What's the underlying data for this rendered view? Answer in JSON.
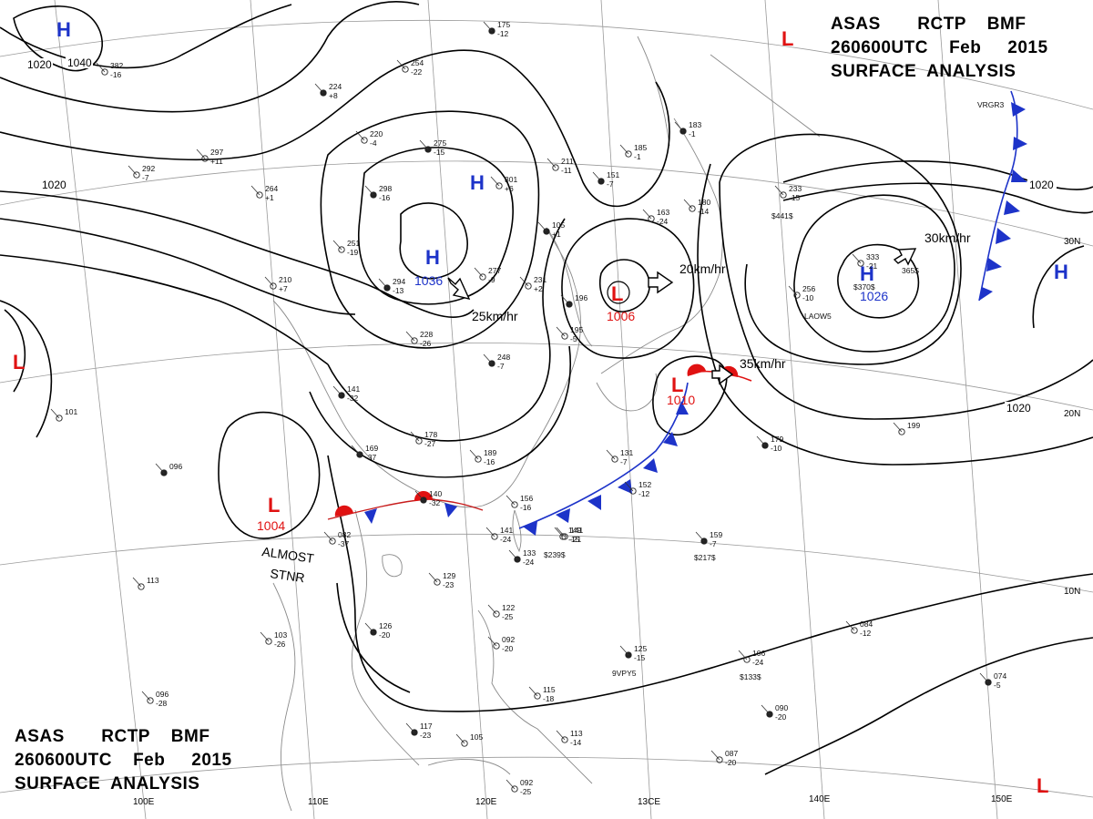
{
  "title": {
    "line1": [
      "ASAS",
      "RCTP",
      "BMF"
    ],
    "line2": [
      "260600UTC",
      "Feb",
      "2015"
    ],
    "line3": "SURFACE  ANALYSIS"
  },
  "graticule": {
    "longitude_labels": [
      "110E",
      "120E",
      "13CE",
      "140E",
      "150E"
    ],
    "latitude_labels": [
      "30N",
      "20N",
      "10N"
    ],
    "partial_label": "100E"
  },
  "isobar_labels": [
    "1040",
    "1020",
    "1020",
    "1020",
    "1020",
    "1020",
    "1020"
  ],
  "pressure_centers": [
    {
      "type": "H",
      "value": ""
    },
    {
      "type": "H",
      "value": ""
    },
    {
      "type": "H",
      "value": "1036"
    },
    {
      "type": "H",
      "value": "1026"
    },
    {
      "type": "H",
      "value": ""
    },
    {
      "type": "L",
      "value": ""
    },
    {
      "type": "L",
      "value": ""
    },
    {
      "type": "L",
      "value": "1006"
    },
    {
      "type": "L",
      "value": "1010"
    },
    {
      "type": "L",
      "value": "1004"
    },
    {
      "type": "L",
      "value": ""
    }
  ],
  "motions": [
    "25km/hr",
    "20km/hr",
    "35km/hr",
    "30km/hr"
  ],
  "annotations": [
    "ALMOST",
    "STNR"
  ],
  "stations": [
    {
      "a": "175",
      "b": "-12"
    },
    {
      "a": "382",
      "b": "-16"
    },
    {
      "a": "254",
      "b": "-22"
    },
    {
      "a": "224",
      "b": "+8"
    },
    {
      "a": "297",
      "b": "+11"
    },
    {
      "a": "292",
      "b": "-7"
    },
    {
      "a": "275",
      "b": "-15"
    },
    {
      "a": "220",
      "b": "-4"
    },
    {
      "a": "264",
      "b": "+1"
    },
    {
      "a": "298",
      "b": "-16"
    },
    {
      "a": "301",
      "b": "+6"
    },
    {
      "a": "185",
      "b": "-1"
    },
    {
      "a": "151",
      "b": "-7"
    },
    {
      "a": "211",
      "b": "-11"
    },
    {
      "a": "163",
      "b": "-24"
    },
    {
      "a": "183",
      "b": "-1"
    },
    {
      "a": "180",
      "b": "-14"
    },
    {
      "a": "233",
      "b": "-15"
    },
    {
      "a": "105",
      "b": "+1"
    },
    {
      "a": "251",
      "b": "-19"
    },
    {
      "a": "210",
      "b": "+7"
    },
    {
      "a": "294",
      "b": "-13"
    },
    {
      "a": "277",
      "b": "-9"
    },
    {
      "a": "231",
      "b": "+2"
    },
    {
      "a": "196",
      "b": ""
    },
    {
      "a": "195",
      "b": "-5"
    },
    {
      "a": "228",
      "b": "-26"
    },
    {
      "a": "248",
      "b": "-7"
    },
    {
      "a": "333",
      "b": "-21"
    },
    {
      "a": "256",
      "b": "-10"
    },
    {
      "a": "141",
      "b": "-32"
    },
    {
      "a": "178",
      "b": "-27"
    },
    {
      "a": "189",
      "b": "-16"
    },
    {
      "a": "169",
      "b": "-37"
    },
    {
      "a": "131",
      "b": "-7"
    },
    {
      "a": "152",
      "b": "-12"
    },
    {
      "a": "179",
      "b": "-10"
    },
    {
      "a": "156",
      "b": "-16"
    },
    {
      "a": "141",
      "b": "-24"
    },
    {
      "a": "140",
      "b": "-32"
    },
    {
      "a": "082",
      "b": "-37"
    },
    {
      "a": "141",
      "b": "-21"
    },
    {
      "a": "133",
      "b": "-24"
    },
    {
      "a": "149",
      "b": "-15"
    },
    {
      "a": "129",
      "b": "-23"
    },
    {
      "a": "159",
      "b": "-7"
    },
    {
      "a": "122",
      "b": "-25"
    },
    {
      "a": "092",
      "b": "-20"
    },
    {
      "a": "126",
      "b": "-20"
    },
    {
      "a": "103",
      "b": "-26"
    },
    {
      "a": "096",
      "b": "-28"
    },
    {
      "a": "125",
      "b": "-15"
    },
    {
      "a": "106",
      "b": "-24"
    },
    {
      "a": "115",
      "b": "-18"
    },
    {
      "a": "117",
      "b": "-23"
    },
    {
      "a": "105",
      "b": ""
    },
    {
      "a": "113",
      "b": "-14"
    },
    {
      "a": "090",
      "b": "-20"
    },
    {
      "a": "087",
      "b": "-20"
    },
    {
      "a": "092",
      "b": "-25"
    },
    {
      "a": "074",
      "b": "-5"
    },
    {
      "a": "113",
      "b": ""
    },
    {
      "a": "101",
      "b": ""
    },
    {
      "a": "096",
      "b": ""
    },
    {
      "a": "199",
      "b": ""
    },
    {
      "a": "084",
      "b": "-12"
    }
  ],
  "station_extras": [
    "VRGR3",
    "LAOW5",
    "$441$",
    "$370$",
    "365$",
    "$239$",
    "$217$",
    "$133$",
    "9VPY5"
  ],
  "colors": {
    "high": "#1d33c9",
    "low": "#e01212",
    "cold_front": "#1d33c9",
    "warm_front": "#e01212",
    "isobar": "#000000",
    "coast": "#8a8a8a"
  }
}
